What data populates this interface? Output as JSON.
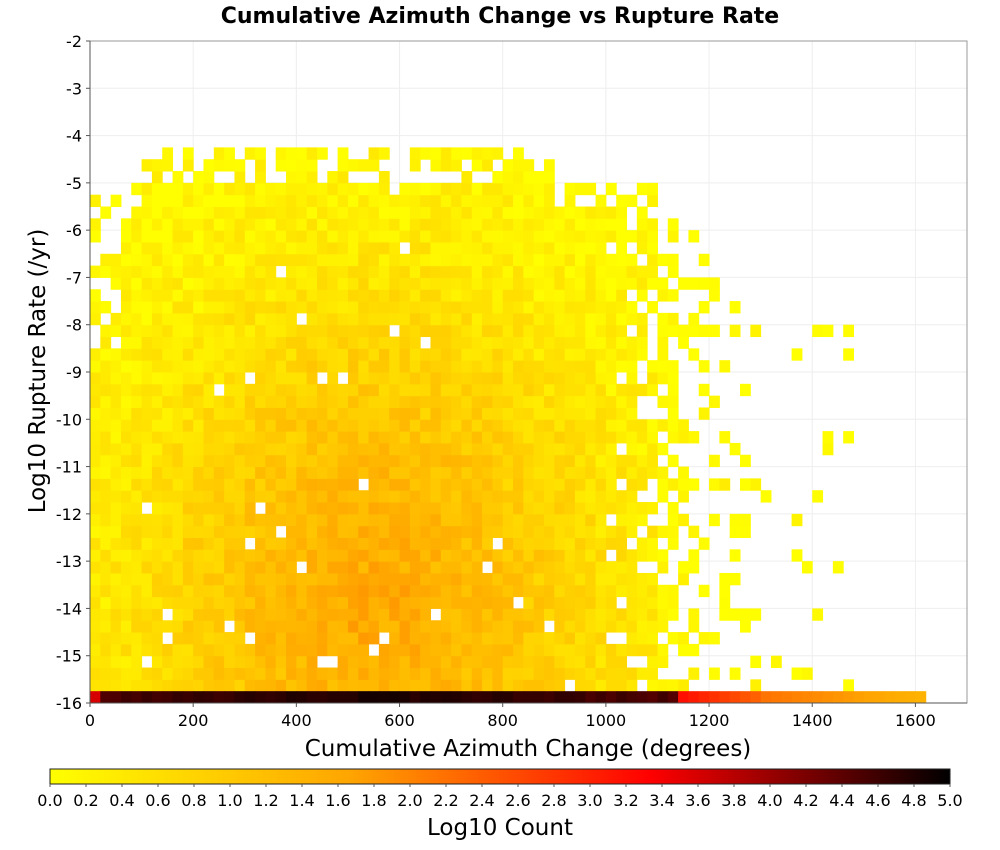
{
  "chart_data": {
    "type": "heatmap",
    "title": "Cumulative Azimuth Change vs Rupture Rate",
    "xlabel": "Cumulative Azimuth Change (degrees)",
    "ylabel": "Log10 Rupture Rate (/yr)",
    "xlim": [
      0,
      1700
    ],
    "ylim": [
      -16,
      -2
    ],
    "xticks": [
      "0",
      "200",
      "400",
      "600",
      "800",
      "1000",
      "1200",
      "1400",
      "1600"
    ],
    "yticks": [
      "-2",
      "-3",
      "-4",
      "-5",
      "-6",
      "-7",
      "-8",
      "-9",
      "-10",
      "-11",
      "-12",
      "-13",
      "-14",
      "-15",
      "-16"
    ],
    "grid": true,
    "bin_width_degrees": 20,
    "bin_height_log10": 0.25,
    "colorbar": {
      "label": "Log10 Count",
      "range": [
        0,
        5
      ],
      "ticks": [
        "0.0",
        "0.2",
        "0.4",
        "0.6",
        "0.8",
        "1.0",
        "1.2",
        "1.4",
        "1.6",
        "1.8",
        "2.0",
        "2.2",
        "2.4",
        "2.6",
        "2.8",
        "3.0",
        "3.2",
        "3.4",
        "3.6",
        "3.8",
        "4.0",
        "4.2",
        "4.4",
        "4.6",
        "4.8",
        "5.0"
      ],
      "colormap": [
        "#ffff00",
        "#ffa500",
        "#ff0000",
        "#000000"
      ],
      "placement": "bottom"
    },
    "approximate_density": {
      "bulk_x_range": [
        0,
        1150
      ],
      "bulk_y_range": [
        -15.75,
        -4.25
      ],
      "bulk_peak_log10_count": 1.8,
      "bulk_peak_center": [
        550,
        -14
      ],
      "sparse_tail_x_range": [
        1150,
        1480
      ],
      "bottom_row_y": -16,
      "bottom_row_x_range": [
        0,
        1620
      ],
      "bottom_row_peak_log10_count": 4.9
    }
  }
}
